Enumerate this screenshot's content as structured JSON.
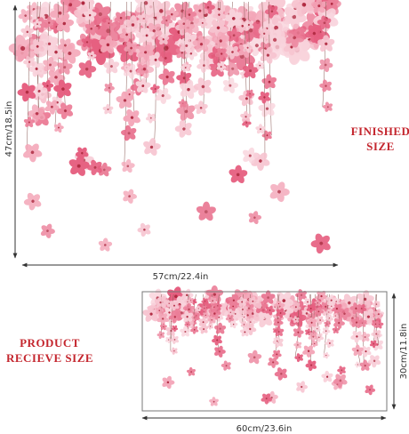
{
  "finished": {
    "title": [
      "FINISHED",
      "SIZE"
    ],
    "height": "47cm/18.5in",
    "width": "57cm/22.4in"
  },
  "product": {
    "title": [
      "PRODUCT",
      "RECIEVE SIZE"
    ],
    "height": "30cm/11.8in",
    "width": "60cm/23.6in"
  }
}
